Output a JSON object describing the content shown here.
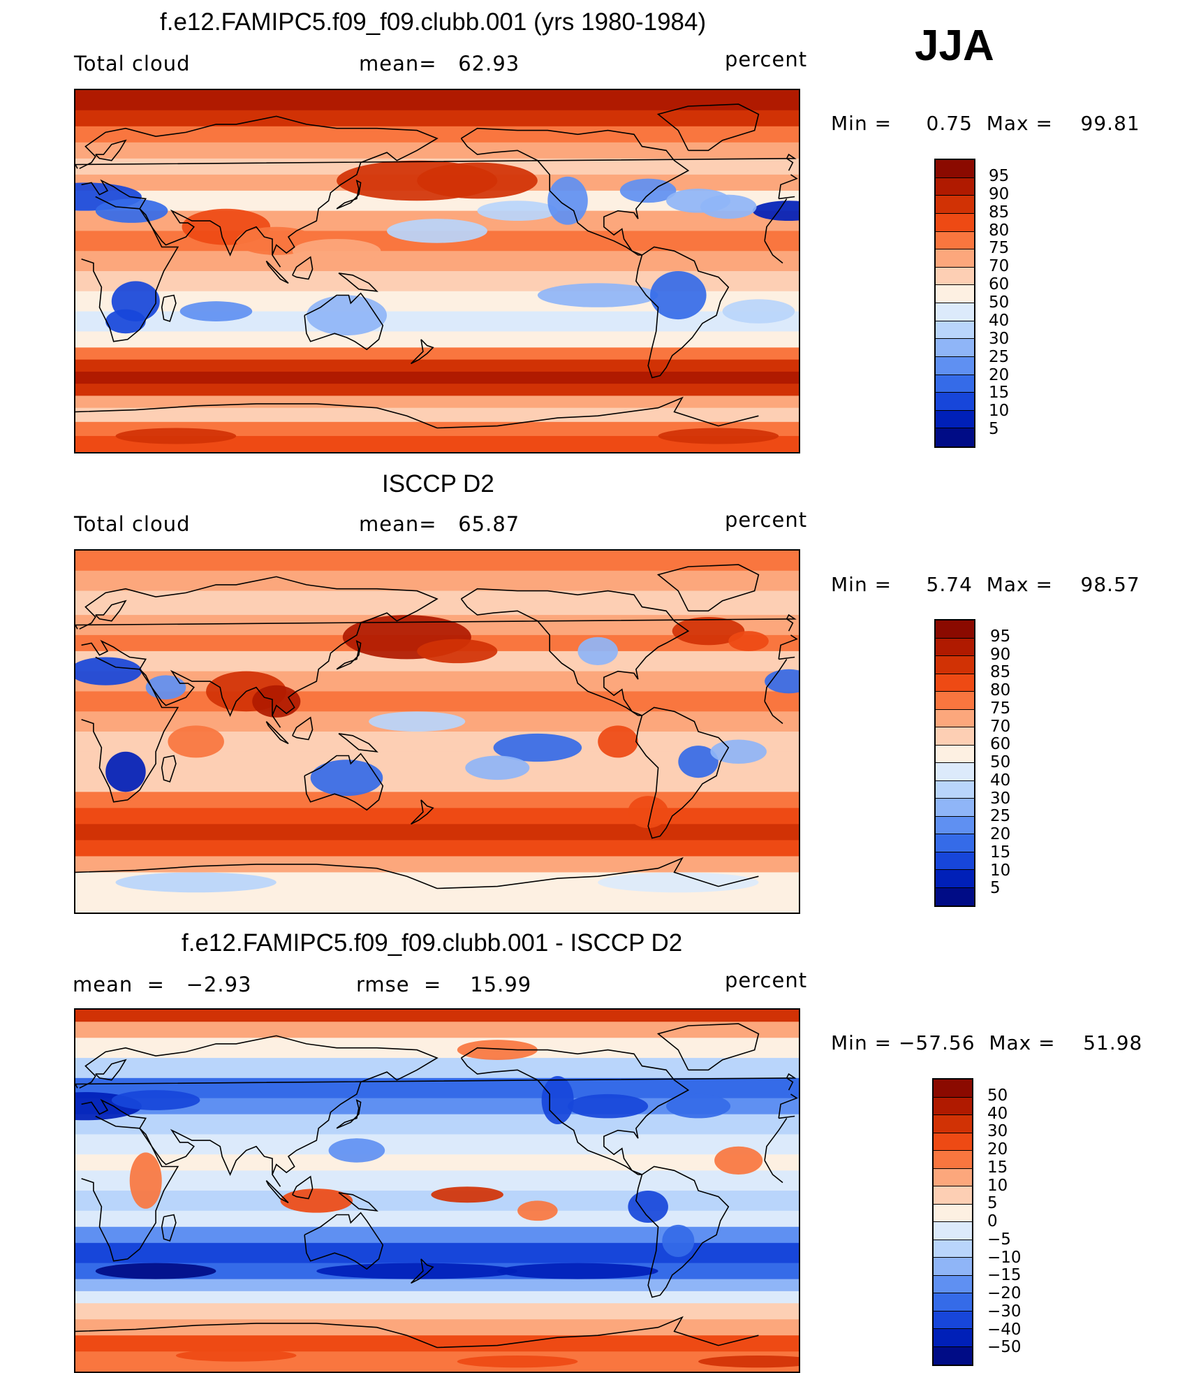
{
  "season": "JJA",
  "panels": [
    {
      "title": "f.e12.FAMIPC5.f09_f09.clubb.001 (yrs 1980-1984)",
      "left_label": "Total cloud",
      "center_label": "mean=   62.93",
      "units": "percent",
      "minmax": "Min =     0.75  Max =    99.81",
      "field": "model",
      "colorbar": {
        "labels": [
          "95",
          "90",
          "85",
          "80",
          "75",
          "70",
          "60",
          "50",
          "40",
          "30",
          "25",
          "20",
          "15",
          "10",
          "5"
        ],
        "colors": [
          "#8b0a00",
          "#b01a00",
          "#d13205",
          "#ee4a14",
          "#f9763f",
          "#fca77c",
          "#fdcfb4",
          "#fdf0e2",
          "#dceafb",
          "#b9d5fb",
          "#8fb5f7",
          "#5f90f2",
          "#356be8",
          "#1746da",
          "#0020b8",
          "#000c86"
        ]
      }
    },
    {
      "title": "ISCCP D2",
      "left_label": "Total cloud",
      "center_label": "mean=   65.87",
      "units": "percent",
      "minmax": "Min =     5.74  Max =    98.57",
      "field": "obs",
      "colorbar": {
        "labels": [
          "95",
          "90",
          "85",
          "80",
          "75",
          "70",
          "60",
          "50",
          "40",
          "30",
          "25",
          "20",
          "15",
          "10",
          "5"
        ],
        "colors": [
          "#8b0a00",
          "#b01a00",
          "#d13205",
          "#ee4a14",
          "#f9763f",
          "#fca77c",
          "#fdcfb4",
          "#fdf0e2",
          "#dceafb",
          "#b9d5fb",
          "#8fb5f7",
          "#5f90f2",
          "#356be8",
          "#1746da",
          "#0020b8",
          "#000c86"
        ]
      }
    },
    {
      "title": "f.e12.FAMIPC5.f09_f09.clubb.001 - ISCCP D2",
      "left_label": "mean  =   −2.93",
      "center_label": "rmse  =    15.99",
      "units": "percent",
      "minmax": "Min = −57.56  Max =    51.98",
      "field": "diff",
      "colorbar": {
        "labels": [
          "50",
          "40",
          "30",
          "20",
          "15",
          "10",
          "5",
          "0",
          "−5",
          "−10",
          "−15",
          "−20",
          "−30",
          "−40",
          "−50"
        ],
        "colors": [
          "#8b0a00",
          "#b01a00",
          "#d13205",
          "#ee4a14",
          "#f9763f",
          "#fca77c",
          "#fdcfb4",
          "#fdf0e2",
          "#dceafb",
          "#b9d5fb",
          "#8fb5f7",
          "#5f90f2",
          "#356be8",
          "#1746da",
          "#0020b8",
          "#000c86"
        ]
      }
    }
  ]
}
